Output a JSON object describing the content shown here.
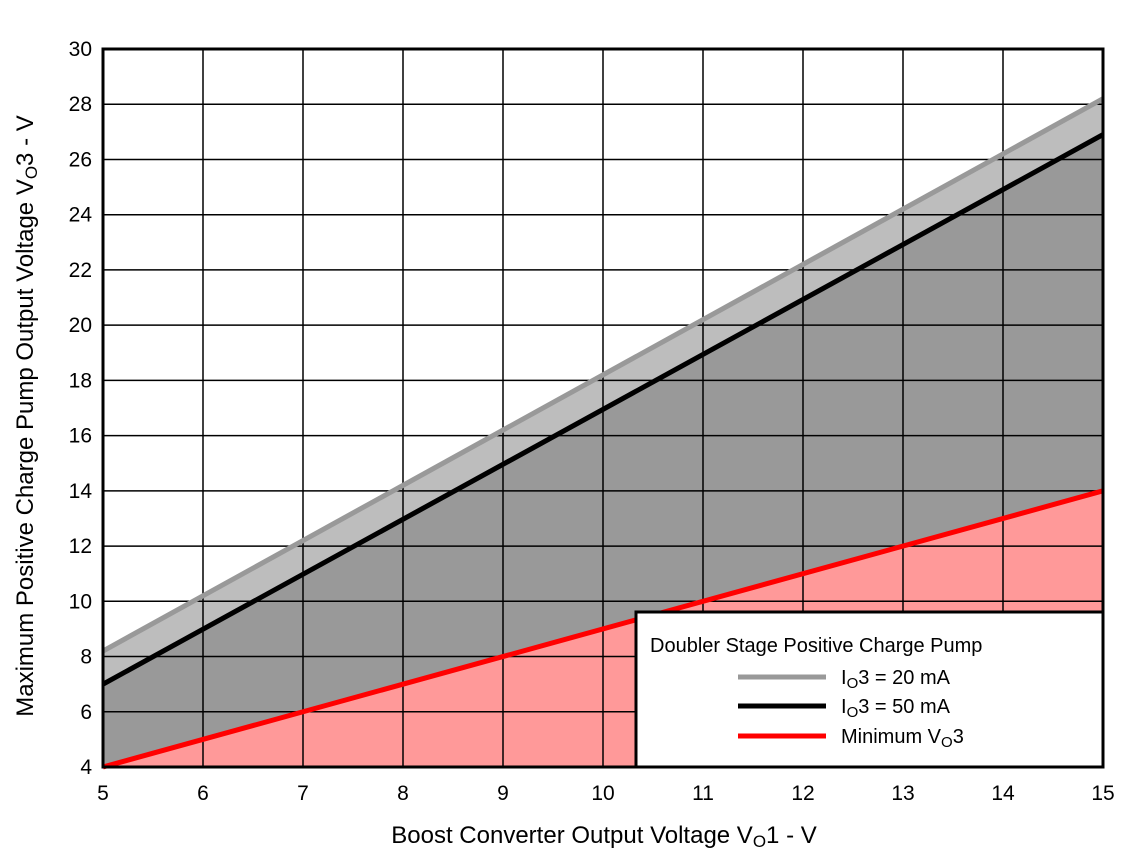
{
  "chart_data": {
    "type": "line",
    "xlabel": {
      "main": "Boost Converter Output Voltage V",
      "sub": "O",
      "rest": "1 - V"
    },
    "ylabel": {
      "main": "Maximum Positive Charge Pump Output Voltage V",
      "sub": "O",
      "rest": "3 - V"
    },
    "xlim": [
      5,
      15
    ],
    "ylim": [
      4,
      30
    ],
    "x_ticks": [
      "5",
      "6",
      "7",
      "8",
      "9",
      "10",
      "11",
      "12",
      "13",
      "14",
      "15"
    ],
    "y_ticks": [
      "4",
      "6",
      "8",
      "10",
      "12",
      "14",
      "16",
      "18",
      "20",
      "22",
      "24",
      "26",
      "28",
      "30"
    ],
    "grid": true,
    "legend": {
      "title": "Doubler Stage Positive Charge Pump",
      "placement": "bottom-right"
    },
    "series": [
      {
        "name": {
          "main": "I",
          "sub": "O",
          "rest": "3 = 20 mA"
        },
        "color": "#999999",
        "x": [
          5,
          15
        ],
        "y": [
          8.2,
          28.2
        ],
        "fill": "#bdbdbd"
      },
      {
        "name": {
          "main": "I",
          "sub": "O",
          "rest": "3 = 50 mA"
        },
        "color": "#000000",
        "x": [
          5,
          15
        ],
        "y": [
          7.0,
          26.9
        ],
        "fill": "#999999"
      },
      {
        "name": {
          "main": "Minimum V",
          "sub": "O",
          "rest": "3"
        },
        "color": "#ff0000",
        "x": [
          5,
          15
        ],
        "y": [
          4.0,
          14.0
        ],
        "fill": "#ff9999"
      }
    ]
  }
}
